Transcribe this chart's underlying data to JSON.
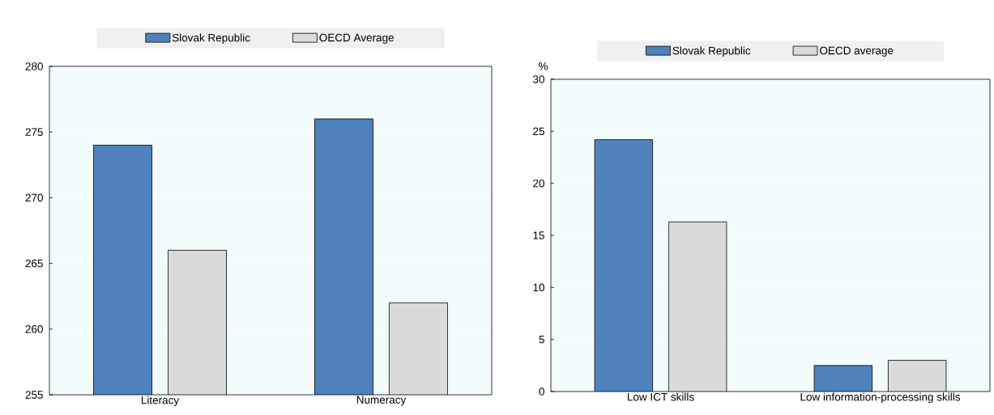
{
  "chart_data": [
    {
      "type": "bar",
      "categories": [
        "Literacy",
        "Numeracy"
      ],
      "series": [
        {
          "name": "Slovak Republic",
          "color": "#4f81bd",
          "values": [
            274,
            276
          ]
        },
        {
          "name": "OECD Average",
          "color": "#dadada",
          "values": [
            266,
            262
          ]
        }
      ],
      "ylim": [
        255,
        280
      ],
      "yticks": [
        255,
        260,
        265,
        270,
        275,
        280
      ],
      "grid": "y",
      "legend": "top"
    },
    {
      "type": "bar",
      "ylabel": "%",
      "categories": [
        "Low ICT skills",
        "Low information-processing skills"
      ],
      "series": [
        {
          "name": "Slovak Republic",
          "color": "#4f81bd",
          "values": [
            24.2,
            2.5
          ]
        },
        {
          "name": "OECD average",
          "color": "#dadada",
          "values": [
            16.3,
            3.0
          ]
        }
      ],
      "ylim": [
        0,
        30
      ],
      "yticks": [
        0,
        5,
        10,
        15,
        20,
        25,
        30
      ],
      "grid": "y",
      "legend": "top"
    }
  ]
}
